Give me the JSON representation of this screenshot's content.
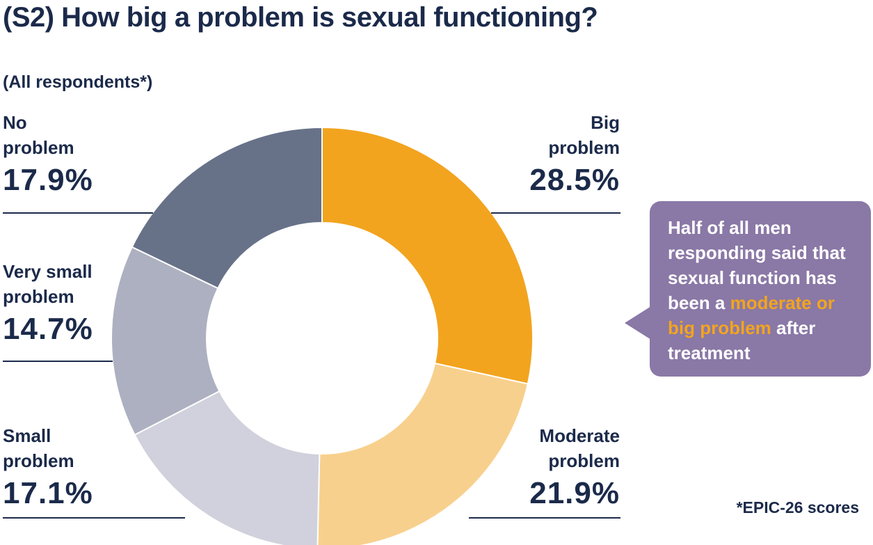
{
  "header": {
    "title": "(S2) How big a problem is sexual functioning?",
    "subtitle": "(All respondents*)"
  },
  "labels": {
    "no_problem": {
      "name_line1": "No",
      "name_line2": "problem",
      "pct": "17.9%"
    },
    "very_small_problem": {
      "name_line1": "Very small",
      "name_line2": "problem",
      "pct": "14.7%"
    },
    "small_problem": {
      "name_line1": "Small",
      "name_line2": "problem",
      "pct": "17.1%"
    },
    "big_problem": {
      "name_line1": "Big",
      "name_line2": "problem",
      "pct": "28.5%"
    },
    "moderate_problem": {
      "name_line1": "Moderate",
      "name_line2": "problem",
      "pct": "21.9%"
    }
  },
  "callout": {
    "text_before": "Half of all men responding said that sexual function has been a ",
    "highlight": "moderate or big problem",
    "text_after": " after treatment"
  },
  "footnote": "*EPIC-26 scores",
  "colors": {
    "navy": "#1b2a4a",
    "big": "#f2a41f",
    "moderate": "#f8d08d",
    "small": "#d0d1dc",
    "very_small": "#adb0c0",
    "no_problem": "#677289",
    "callout": "#8a78a6"
  },
  "chart_data": {
    "type": "pie",
    "variant": "donut",
    "title": "(S2) How big a problem is sexual functioning?",
    "subtitle": "(All respondents*)",
    "start": "12 o'clock, clockwise",
    "categories": [
      "Big problem",
      "Moderate problem",
      "Small problem",
      "Very small problem",
      "No problem"
    ],
    "values": [
      28.5,
      21.9,
      17.1,
      14.7,
      17.9
    ],
    "unit": "%"
  }
}
